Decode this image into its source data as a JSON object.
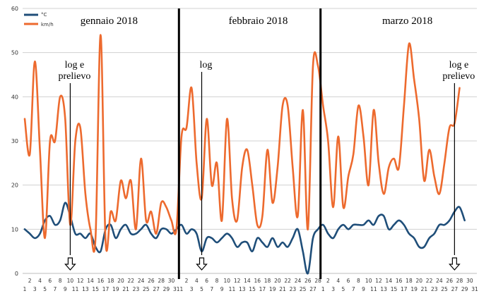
{
  "chart_data": {
    "type": "line",
    "title": "",
    "xlabel": "",
    "ylabel": "",
    "ylim": [
      0,
      60
    ],
    "yticks": [
      "0",
      "10",
      "20",
      "30",
      "40",
      "50",
      "60"
    ],
    "grid": true,
    "legend_position": "top-left",
    "colors": {
      "temp": "#1f4e79",
      "wind": "#ed6a2e",
      "grid": "#d0d0d0",
      "divider": "#000000",
      "arrow": "#000000"
    },
    "months": [
      {
        "label": "gennaio 2018",
        "days": 31,
        "x_ticks": [
          "1",
          "2",
          "3",
          "4",
          "5",
          "6",
          "7",
          "8",
          "9",
          "10",
          "11",
          "12",
          "13",
          "14",
          "15",
          "16",
          "17",
          "18",
          "19",
          "20",
          "21",
          "22",
          "23",
          "24",
          "25",
          "26",
          "27",
          "28",
          "29",
          "30",
          "31"
        ]
      },
      {
        "label": "febbraio 2018",
        "days": 28,
        "x_ticks": [
          "1",
          "2",
          "3",
          "4",
          "5",
          "6",
          "7",
          "8",
          "9",
          "10",
          "11",
          "12",
          "13",
          "14",
          "15",
          "16",
          "17",
          "18",
          "19",
          "20",
          "21",
          "22",
          "23",
          "24",
          "25",
          "26",
          "27",
          "28"
        ]
      },
      {
        "label": "marzo 2018",
        "days": 31,
        "x_ticks": [
          "1",
          "2",
          "3",
          "4",
          "5",
          "6",
          "7",
          "8",
          "9",
          "10",
          "11",
          "12",
          "13",
          "14",
          "15",
          "16",
          "17",
          "18",
          "19",
          "20",
          "21",
          "22",
          "23",
          "24",
          "25",
          "26",
          "27",
          "28",
          "29",
          "30",
          "31"
        ]
      }
    ],
    "series": [
      {
        "name": "°C",
        "color": "#1f4e79",
        "values": [
          10,
          9,
          8,
          9,
          12,
          13,
          11,
          12,
          16,
          13,
          9,
          9,
          8,
          9,
          6,
          5,
          10,
          11,
          8,
          10,
          11,
          9,
          9,
          10,
          11,
          9,
          8,
          10,
          10,
          9,
          10,
          11,
          9,
          10,
          9,
          5,
          8,
          8,
          7,
          8,
          9,
          8,
          6,
          7,
          7,
          5,
          8,
          7,
          6,
          8,
          6,
          7,
          6,
          8,
          10,
          5,
          0,
          8,
          10,
          11,
          9,
          8,
          10,
          11,
          10,
          11,
          11,
          11,
          12,
          11,
          13,
          13,
          10,
          11,
          12,
          11,
          9,
          8,
          6,
          6,
          8,
          9,
          11,
          11,
          12,
          14,
          15,
          12
        ]
      },
      {
        "name": "km/h",
        "color": "#ed6a2e",
        "values": [
          35,
          27,
          48,
          28,
          8,
          30,
          30,
          40,
          35,
          11,
          30,
          33,
          18,
          10,
          8,
          54,
          7,
          14,
          12,
          21,
          17,
          21,
          10,
          26,
          12,
          14,
          9,
          16,
          15,
          12,
          10,
          31,
          33,
          42,
          25,
          17,
          35,
          20,
          25,
          12,
          35,
          17,
          12,
          24,
          28,
          20,
          11,
          13,
          28,
          16,
          24,
          38,
          38,
          24,
          13,
          37,
          10,
          47,
          47,
          38,
          30,
          15,
          31,
          15,
          22,
          27,
          38,
          31,
          20,
          37,
          25,
          18,
          24,
          26,
          24,
          38,
          52,
          44,
          35,
          21,
          28,
          22,
          18,
          25,
          33,
          34,
          42
        ]
      }
    ],
    "annotations": [
      {
        "lines": [
          "log e",
          "prelievo"
        ],
        "month": 0,
        "day": 10
      },
      {
        "lines": [
          "log"
        ],
        "month": 1,
        "day": 5
      },
      {
        "lines": [
          "log e",
          "prelievo"
        ],
        "month": 2,
        "day": 27
      }
    ]
  }
}
